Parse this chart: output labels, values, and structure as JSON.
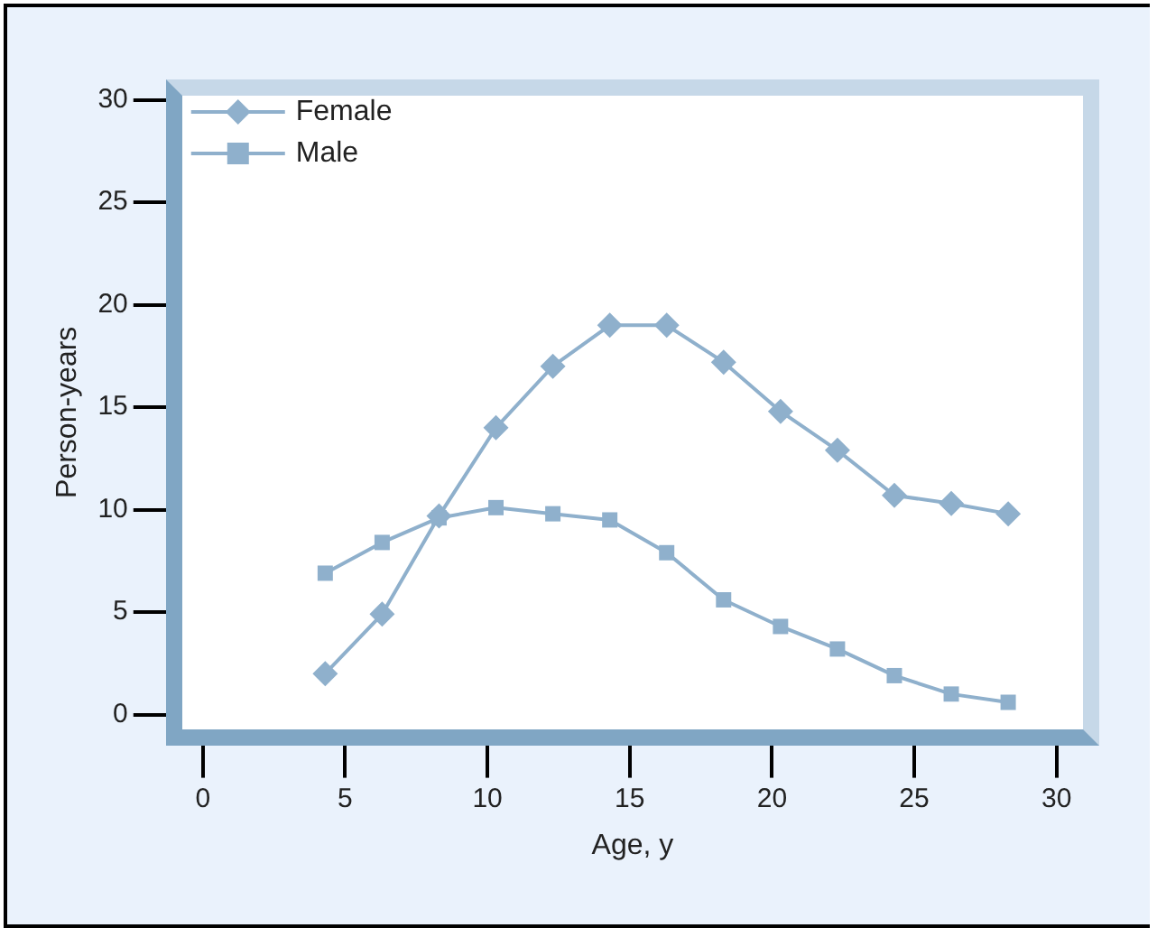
{
  "chart_data": {
    "type": "line",
    "xlabel": "Age, y",
    "ylabel": "Person-years",
    "x": [
      4.3,
      6.3,
      8.3,
      10.3,
      12.3,
      14.3,
      16.3,
      18.3,
      20.3,
      22.3,
      24.3,
      26.3,
      28.3
    ],
    "series": [
      {
        "name": "Female",
        "color": "#8fb0cc",
        "marker": "diamond",
        "values": [
          2,
          4.9,
          9.7,
          14,
          17,
          19,
          19,
          17.2,
          14.8,
          12.9,
          10.7,
          10.3,
          9.8
        ]
      },
      {
        "name": "Male",
        "color": "#8fb0cc",
        "marker": "square",
        "values": [
          6.9,
          8.4,
          9.6,
          10.1,
          9.8,
          9.5,
          7.9,
          5.6,
          4.3,
          3.2,
          1.9,
          1,
          0.6
        ]
      }
    ],
    "xlim": [
      -1.3,
      31.5
    ],
    "ylim": [
      -1.5,
      31
    ],
    "xticks": [
      0,
      5,
      10,
      15,
      20,
      25,
      30
    ],
    "yticks": [
      0,
      5,
      10,
      15,
      20,
      25,
      30
    ],
    "grid": false,
    "legend": "top left",
    "line_style": "solid"
  }
}
